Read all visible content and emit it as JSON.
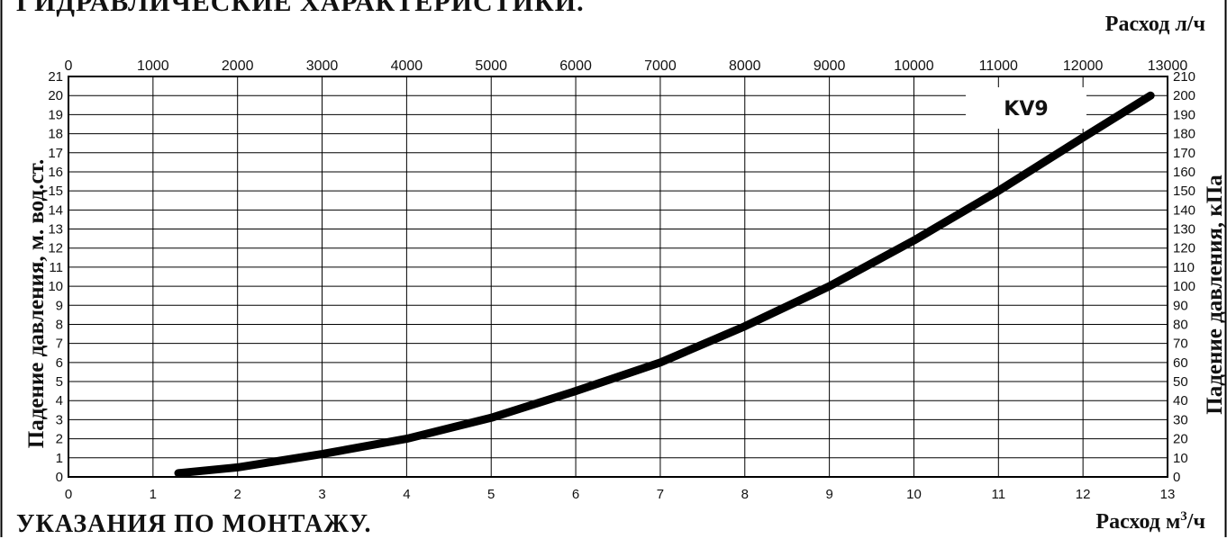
{
  "headings": {
    "top": "ГИДРАВЛИЧЕСКИЕ ХАРАКТЕРИСТИКИ.",
    "bottom": "УКАЗАНИЯ ПО МОНТАЖУ."
  },
  "chart_data": {
    "type": "line",
    "series": [
      {
        "name": "KV9",
        "x": [
          1.3,
          2,
          3,
          4,
          5,
          6,
          7,
          8,
          9,
          10,
          11,
          12,
          12.8
        ],
        "y": [
          0.2,
          0.5,
          1.2,
          2.0,
          3.1,
          4.5,
          6.0,
          7.9,
          10.0,
          12.4,
          15.0,
          17.8,
          20.0
        ]
      }
    ],
    "x_axis_bottom": {
      "label": "Расход м³/ч",
      "range": [
        0,
        13
      ],
      "ticks": [
        "0",
        "1",
        "2",
        "3",
        "4",
        "5",
        "6",
        "7",
        "8",
        "9",
        "10",
        "11",
        "12",
        "13"
      ]
    },
    "x_axis_top": {
      "label": "Расход л/ч",
      "range": [
        0,
        13000
      ],
      "ticks": [
        "0",
        "1000",
        "2000",
        "3000",
        "4000",
        "5000",
        "6000",
        "7000",
        "8000",
        "9000",
        "10000",
        "11000",
        "12000",
        "13000"
      ]
    },
    "y_axis_left": {
      "label": "Падение давления, м. вод.ст.",
      "range": [
        0,
        21
      ],
      "ticks": [
        "0",
        "1",
        "2",
        "3",
        "4",
        "5",
        "6",
        "7",
        "8",
        "9",
        "10",
        "11",
        "12",
        "13",
        "14",
        "15",
        "16",
        "17",
        "18",
        "19",
        "20",
        "21"
      ]
    },
    "y_axis_right": {
      "label": "Падение давления, кПа",
      "range": [
        0,
        210
      ],
      "ticks": [
        "0",
        "10",
        "20",
        "30",
        "40",
        "50",
        "60",
        "70",
        "80",
        "90",
        "100",
        "110",
        "120",
        "130",
        "140",
        "150",
        "160",
        "170",
        "180",
        "190",
        "200",
        "210"
      ]
    },
    "grid": true,
    "legend": "top-right",
    "colors": {
      "curve": "#000000",
      "grid": "#000000",
      "frame": "#000000"
    }
  }
}
